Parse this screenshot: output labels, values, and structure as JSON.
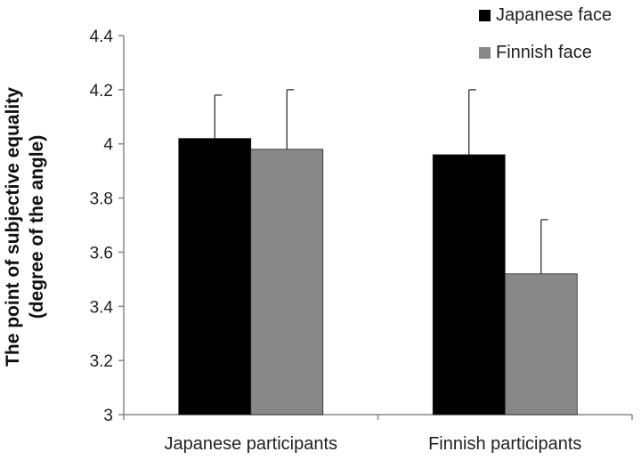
{
  "chart_data": {
    "type": "bar",
    "categories": [
      "Japanese participants",
      "Finnish participants"
    ],
    "series": [
      {
        "name": "Japanese face",
        "color": "#000000",
        "values": [
          4.02,
          3.96
        ],
        "error": [
          0.16,
          0.24
        ]
      },
      {
        "name": "Finnish face",
        "color": "#888888",
        "values": [
          3.98,
          3.52
        ],
        "error": [
          0.22,
          0.2
        ]
      }
    ],
    "ylabel_line1": "The point of subjective equality",
    "ylabel_line2": "(degree of the angle)",
    "ylim": [
      3,
      4.4
    ],
    "yticks": [
      3,
      3.2,
      3.4,
      3.6,
      3.8,
      4,
      4.2,
      4.4
    ],
    "ytick_labels": [
      "3",
      "3.2",
      "3.4",
      "3.6",
      "3.8",
      "4",
      "4.2",
      "4.4"
    ],
    "grid": false,
    "legend_position": "top-right"
  }
}
